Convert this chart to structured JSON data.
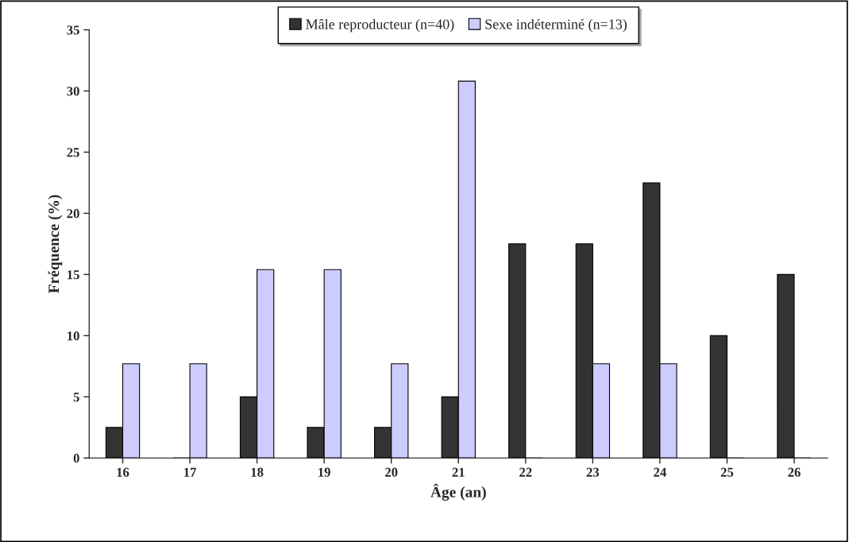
{
  "chart_data": {
    "type": "bar",
    "xlabel": "Âge (an)",
    "ylabel": "Fréquence (%)",
    "categories": [
      "16",
      "17",
      "18",
      "19",
      "20",
      "21",
      "22",
      "23",
      "24",
      "25",
      "26"
    ],
    "series": [
      {
        "name": "Mâle reproducteur (n=40)",
        "color": "#333333",
        "values": [
          2.5,
          0,
          5,
          2.5,
          2.5,
          5,
          17.5,
          17.5,
          22.5,
          10,
          15
        ]
      },
      {
        "name": "Sexe indéterminé (n=13)",
        "color": "#ccccff",
        "values": [
          7.7,
          7.7,
          15.4,
          15.4,
          7.7,
          30.8,
          0,
          7.7,
          7.7,
          0,
          0
        ]
      }
    ],
    "ylim": [
      0,
      35
    ],
    "yticks": [
      0,
      5,
      10,
      15,
      20,
      25,
      30,
      35
    ],
    "grid": false,
    "legend": "top"
  }
}
